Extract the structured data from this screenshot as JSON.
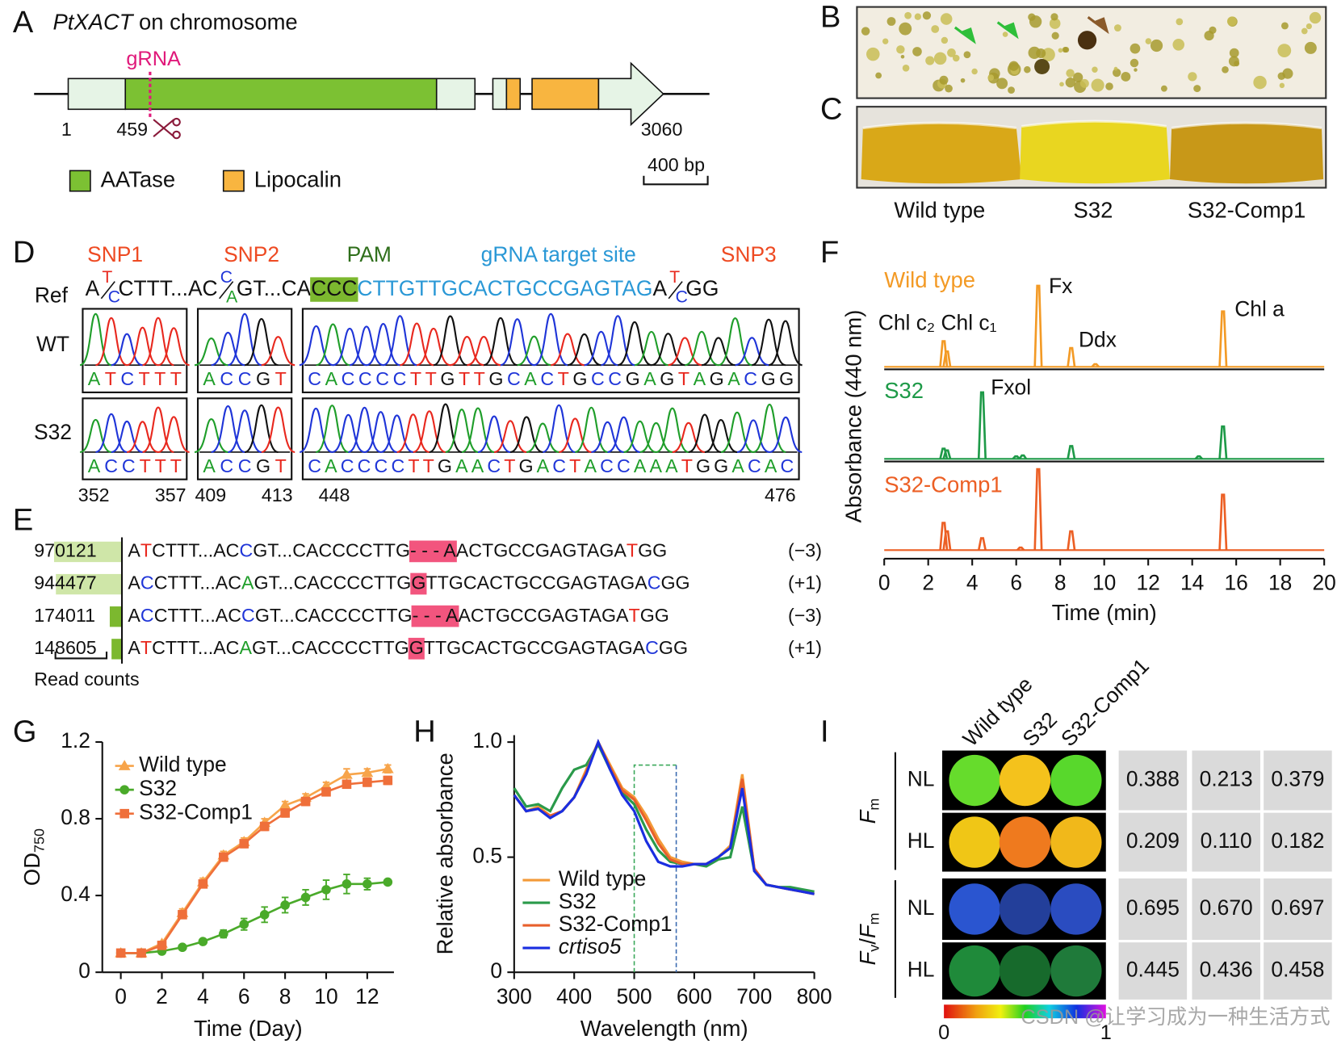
{
  "panel_labels": [
    "A",
    "B",
    "C",
    "D",
    "E",
    "F",
    "G",
    "H",
    "I"
  ],
  "watermark": "CSDN @让学习成为一种生活方式",
  "base_colors": {
    "A": "#1f9e2a",
    "C": "#1f35d8",
    "G": "#111111",
    "T": "#e8281e"
  },
  "gene": {
    "title_italic": "PtXACT",
    "title_rest": "on chromosome",
    "grna": "gRNA",
    "positions": [
      "1",
      "459",
      "3060"
    ],
    "legend": [
      "AATase",
      "Lipocalin"
    ],
    "scale": "400 bp"
  },
  "photo_labels": [
    "Wild type",
    "S32",
    "S32-Comp1"
  ],
  "sequencing": {
    "headers": [
      {
        "text": "SNP1",
        "color": "#ee4a22"
      },
      {
        "text": "SNP2",
        "color": "#ee4a22"
      },
      {
        "text": "PAM",
        "color": "#2e6e1a"
      },
      {
        "text": "gRNA target site",
        "color": "#2a98d6"
      },
      {
        "text": "SNP3",
        "color": "#ee4a22"
      }
    ],
    "ref_label": "Ref",
    "ref": [
      {
        "text": "A"
      },
      {
        "pair": [
          "T",
          "C"
        ]
      },
      {
        "text": "CTTT...AC"
      },
      {
        "pair": [
          "C",
          "A"
        ]
      },
      {
        "text": "GT...CA"
      },
      {
        "text": "CCC",
        "bg": "#7cb82f"
      },
      {
        "text": "CTTGTTGCACTGCCGAGTAG",
        "color": "#2a98d6"
      },
      {
        "text": "A"
      },
      {
        "pair": [
          "T",
          "C"
        ]
      },
      {
        "text": "GG"
      }
    ],
    "rows": [
      {
        "label": "WT",
        "reads": [
          "ATCTTT",
          "ACCGT",
          "CACCCCTTGTTGCACTGCCGAGTAGACGG"
        ]
      },
      {
        "label": "S32",
        "reads": [
          "ACCTTT",
          "ACCGT",
          "CACCCCTTGAACTGACTACCAAATGGACAC"
        ]
      }
    ],
    "positions": [
      "352",
      "357",
      "409",
      "413",
      "448",
      "476"
    ]
  },
  "alleles": [
    {
      "segments": [
        {
          "text": "A"
        },
        {
          "text": "T",
          "snp": true
        },
        {
          "text": "CTTT...AC"
        },
        {
          "text": "C",
          "snp": true
        },
        {
          "text": "GT...CACCCCTTG"
        },
        {
          "text": "- - - A",
          "bg": "#f2557e"
        },
        {
          "text": "ACTGCCGAGTAGA"
        },
        {
          "text": "T",
          "snp": true
        },
        {
          "text": "GG"
        }
      ],
      "indel": "(−3)"
    },
    {
      "segments": [
        {
          "text": "A"
        },
        {
          "text": "C",
          "snp": true
        },
        {
          "text": "CTTT...AC"
        },
        {
          "text": "A",
          "snp": true
        },
        {
          "text": "GT...CACCCCTTG"
        },
        {
          "text": "G",
          "bg": "#f2557e"
        },
        {
          "text": "TTGCACTGCCGAGTAGA"
        },
        {
          "text": "C",
          "snp": true
        },
        {
          "text": "GG"
        }
      ],
      "indel": "(+1)"
    },
    {
      "segments": [
        {
          "text": "A"
        },
        {
          "text": "C",
          "snp": true
        },
        {
          "text": "CTTT...AC"
        },
        {
          "text": "C",
          "snp": true
        },
        {
          "text": "GT...CACCCCTTG"
        },
        {
          "text": "- - - A",
          "bg": "#f2557e"
        },
        {
          "text": "ACTGCCGAGTAGA"
        },
        {
          "text": "T",
          "snp": true
        },
        {
          "text": "GG"
        }
      ],
      "indel": "(−3)"
    },
    {
      "segments": [
        {
          "text": "A"
        },
        {
          "text": "T",
          "snp": true
        },
        {
          "text": "CTTT...AC"
        },
        {
          "text": "A",
          "snp": true
        },
        {
          "text": "GT...CACCCCTTG"
        },
        {
          "text": "G",
          "bg": "#f2557e"
        },
        {
          "text": "TTGCACTGCCGAGTAGA"
        },
        {
          "text": "C",
          "snp": true
        },
        {
          "text": "GG"
        }
      ],
      "indel": "(+1)"
    }
  ],
  "fluorescence": {
    "columns": [
      "Wild type",
      "S32",
      "S32-Comp1"
    ],
    "groups": [
      {
        "label": [
          {
            "text": "F",
            "italic": true
          },
          {
            "text": "m",
            "sub": true
          }
        ],
        "rows": [
          {
            "label": "NL",
            "values": [
              "0.388",
              "0.213",
              "0.379"
            ],
            "colors": [
              "#66dc2c",
              "#f4c21c",
              "#58d82c"
            ]
          },
          {
            "label": "HL",
            "values": [
              "0.209",
              "0.110",
              "0.182"
            ],
            "colors": [
              "#f0c616",
              "#ef7a1e",
              "#f1b81a"
            ]
          }
        ]
      },
      {
        "label": [
          {
            "text": "F",
            "italic": true
          },
          {
            "text": "v",
            "sub": true
          },
          {
            "text": "/"
          },
          {
            "text": "F",
            "italic": true
          },
          {
            "text": "m",
            "sub": true
          }
        ],
        "rows": [
          {
            "label": "NL",
            "values": [
              "0.695",
              "0.670",
              "0.697"
            ],
            "colors": [
              "#2a55d0",
              "#233f9a",
              "#2a4cc0"
            ]
          },
          {
            "label": "HL",
            "values": [
              "0.445",
              "0.436",
              "0.458"
            ],
            "colors": [
              "#1f8a3a",
              "#176a2c",
              "#1f7a3a"
            ]
          }
        ]
      }
    ],
    "colorbar": {
      "ticks": [
        "0",
        "1"
      ]
    }
  },
  "chart_data": [
    {
      "type": "chromatogram",
      "xlabel": "Time (min)",
      "ylabel": "Absorbance (440 nm)",
      "xlim": [
        0,
        20
      ],
      "xticks": [
        0,
        2,
        4,
        6,
        8,
        10,
        12,
        14,
        16,
        18,
        20
      ],
      "ylim": [
        0,
        100
      ],
      "annotations": [
        "Chl c₂ Chl c₁",
        "Fx",
        "Ddx",
        "Chl a",
        "Fxol"
      ],
      "series": [
        {
          "name": "Wild type",
          "color": "#f39a25",
          "x": [
            2.7,
            2.85,
            7.0,
            8.5,
            9.6,
            15.4
          ],
          "values": [
            30,
            18,
            95,
            22,
            3,
            65
          ]
        },
        {
          "name": "S32",
          "color": "#1e9a48",
          "x": [
            2.7,
            2.85,
            4.45,
            6.0,
            6.3,
            8.5,
            14.3,
            15.4
          ],
          "values": [
            12,
            10,
            78,
            3,
            4,
            15,
            3,
            38
          ]
        },
        {
          "name": "S32-Comp1",
          "color": "#ec5f24",
          "x": [
            2.7,
            2.85,
            4.45,
            6.2,
            7.0,
            8.5,
            15.4
          ],
          "values": [
            32,
            22,
            14,
            3,
            95,
            22,
            65
          ]
        }
      ]
    },
    {
      "type": "line",
      "xlabel": "Time (Day)",
      "ylabel": {
        "main": "OD",
        "sub": "750"
      },
      "xlim": [
        -0.9,
        13.3
      ],
      "ylim": [
        0,
        1.2
      ],
      "xticks": [
        0,
        2,
        4,
        6,
        8,
        10,
        12
      ],
      "yticks": [
        0,
        0.4,
        0.8,
        1.2
      ],
      "legend": "upper left",
      "x": [
        0,
        1,
        2,
        3,
        4,
        5,
        6,
        7,
        8,
        9,
        10,
        11,
        12,
        13
      ],
      "series": [
        {
          "name": "Wild type",
          "color": "#f7a44a",
          "marker": "triangle",
          "values": [
            0.1,
            0.1,
            0.15,
            0.31,
            0.47,
            0.61,
            0.68,
            0.78,
            0.87,
            0.91,
            0.97,
            1.03,
            1.04,
            1.06
          ],
          "errors": [
            0.01,
            0.01,
            0.01,
            0.02,
            0.02,
            0.02,
            0.02,
            0.02,
            0.02,
            0.02,
            0.02,
            0.03,
            0.02,
            0.02
          ]
        },
        {
          "name": "S32",
          "color": "#4aaa2a",
          "marker": "circle",
          "values": [
            0.1,
            0.1,
            0.11,
            0.13,
            0.16,
            0.2,
            0.25,
            0.3,
            0.35,
            0.39,
            0.43,
            0.46,
            0.46,
            0.47
          ],
          "errors": [
            0.01,
            0.01,
            0.01,
            0.01,
            0.01,
            0.02,
            0.03,
            0.04,
            0.04,
            0.04,
            0.05,
            0.05,
            0.03,
            0.01
          ]
        },
        {
          "name": "S32-Comp1",
          "color": "#ef6f3a",
          "marker": "square",
          "values": [
            0.1,
            0.1,
            0.14,
            0.3,
            0.46,
            0.6,
            0.67,
            0.76,
            0.83,
            0.89,
            0.94,
            0.98,
            0.99,
            1.0
          ],
          "errors": [
            0.01,
            0.01,
            0.01,
            0.02,
            0.02,
            0.02,
            0.02,
            0.02,
            0.02,
            0.02,
            0.02,
            0.02,
            0.02,
            0.02
          ]
        }
      ]
    },
    {
      "type": "line",
      "xlabel": "Wavelength (nm)",
      "ylabel": "Relative absorbance",
      "xlim": [
        300,
        800
      ],
      "ylim": [
        0,
        1.03
      ],
      "xticks": [
        300,
        400,
        500,
        600,
        700,
        800
      ],
      "yticks": [
        0,
        0.5,
        {
          "value": 1,
          "label": "1.0"
        }
      ],
      "legend": "lower left",
      "highlight": {
        "x": [
          500,
          570
        ],
        "y": 0.9,
        "colors": [
          "#3aa85a",
          "#3a6ab0"
        ]
      },
      "x": [
        300,
        320,
        340,
        360,
        380,
        400,
        420,
        440,
        460,
        480,
        500,
        520,
        540,
        560,
        580,
        600,
        620,
        640,
        660,
        680,
        700,
        720,
        740,
        760,
        780,
        800
      ],
      "series": [
        {
          "name": "Wild type",
          "color": "#f39a38",
          "values": [
            0.77,
            0.7,
            0.72,
            0.68,
            0.7,
            0.76,
            0.88,
            1.0,
            0.9,
            0.8,
            0.76,
            0.68,
            0.58,
            0.5,
            0.48,
            0.47,
            0.47,
            0.5,
            0.55,
            0.86,
            0.45,
            0.38,
            0.37,
            0.36,
            0.35,
            0.34
          ]
        },
        {
          "name": "S32",
          "color": "#2a9a4a",
          "values": [
            0.8,
            0.72,
            0.73,
            0.7,
            0.8,
            0.88,
            0.9,
            0.99,
            0.88,
            0.78,
            0.73,
            0.62,
            0.53,
            0.48,
            0.47,
            0.47,
            0.46,
            0.49,
            0.5,
            0.72,
            0.44,
            0.38,
            0.37,
            0.37,
            0.36,
            0.35
          ]
        },
        {
          "name": "S32-Comp1",
          "color": "#e8602c",
          "values": [
            0.77,
            0.7,
            0.71,
            0.68,
            0.7,
            0.76,
            0.87,
            1.0,
            0.89,
            0.79,
            0.75,
            0.66,
            0.56,
            0.49,
            0.47,
            0.47,
            0.47,
            0.5,
            0.54,
            0.84,
            0.45,
            0.38,
            0.37,
            0.36,
            0.35,
            0.34
          ]
        },
        {
          "name": "crtiso5",
          "color": "#1a2ee0",
          "italic": true,
          "values": [
            0.77,
            0.7,
            0.71,
            0.67,
            0.7,
            0.76,
            0.86,
            1.0,
            0.88,
            0.77,
            0.7,
            0.57,
            0.48,
            0.46,
            0.46,
            0.47,
            0.47,
            0.5,
            0.54,
            0.8,
            0.44,
            0.38,
            0.37,
            0.36,
            0.35,
            0.34
          ]
        }
      ]
    },
    {
      "type": "bar",
      "orientation": "horizontal",
      "xlabel": "Read counts",
      "xlim": [
        0,
        1000000
      ],
      "values": [
        970121,
        944477,
        174011,
        148605
      ],
      "colors": [
        "#cfe6a8",
        "#cfe6a8",
        "#7cb82f",
        "#7cb82f"
      ]
    }
  ]
}
